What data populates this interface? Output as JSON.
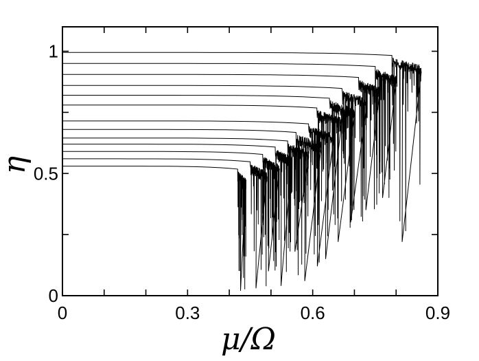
{
  "chart_data": {
    "type": "line",
    "title": "",
    "xlabel": "μ/Ω",
    "ylabel": "η",
    "xlim": [
      0,
      0.9
    ],
    "ylim": [
      0,
      1.1
    ],
    "xticks": [
      0,
      0.3,
      0.6,
      0.9
    ],
    "xtick_labels": [
      "0",
      "0.3",
      "0.6",
      "0.9"
    ],
    "yticks": [
      0,
      0.5,
      1
    ],
    "ytick_labels": [
      "0",
      "0.5",
      "1"
    ],
    "grid": false,
    "legend": "none",
    "line_color": "#000000",
    "series": [
      {
        "plateau": 0.53,
        "x_end": 0.42,
        "x_last": 0.44,
        "dip_min": 0.02
      },
      {
        "plateau": 0.56,
        "x_end": 0.45,
        "x_last": 0.49,
        "dip_min": 0.03
      },
      {
        "plateau": 0.59,
        "x_end": 0.48,
        "x_last": 0.52,
        "dip_min": 0.1
      },
      {
        "plateau": 0.62,
        "x_end": 0.51,
        "x_last": 0.55,
        "dip_min": 0.04
      },
      {
        "plateau": 0.645,
        "x_end": 0.54,
        "x_last": 0.59,
        "dip_min": 0.18
      },
      {
        "plateau": 0.68,
        "x_end": 0.56,
        "x_last": 0.62,
        "dip_min": 0.06
      },
      {
        "plateau": 0.715,
        "x_end": 0.59,
        "x_last": 0.65,
        "dip_min": 0.12
      },
      {
        "plateau": 0.78,
        "x_end": 0.61,
        "x_last": 0.67,
        "dip_min": 0.15
      },
      {
        "plateau": 0.82,
        "x_end": 0.64,
        "x_last": 0.7,
        "dip_min": 0.22
      },
      {
        "plateau": 0.86,
        "x_end": 0.67,
        "x_last": 0.73,
        "dip_min": 0.3
      },
      {
        "plateau": 0.905,
        "x_end": 0.71,
        "x_last": 0.76,
        "dip_min": 0.35
      },
      {
        "plateau": 0.95,
        "x_end": 0.75,
        "x_last": 0.8,
        "dip_min": 0.4
      },
      {
        "plateau": 0.995,
        "x_end": 0.79,
        "x_last": 0.86,
        "dip_min": 0.22
      }
    ]
  }
}
